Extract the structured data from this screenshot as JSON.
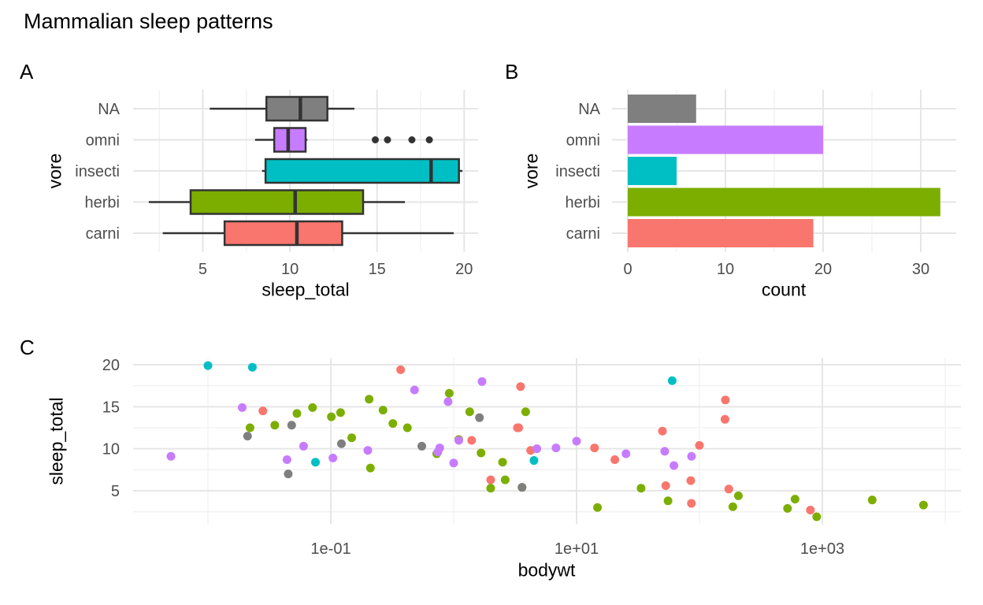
{
  "title": "Mammalian sleep patterns",
  "palette": {
    "carni": "#F8766D",
    "herbi": "#7CAE00",
    "insecti": "#00BFC4",
    "omni": "#C77CFF",
    "NA": "#7F7F7F"
  },
  "style": {
    "background": "#FFFFFF",
    "grid_major": "#E6E6E6",
    "grid_minor": "#F0F0F0",
    "box_line": "#333333",
    "outlier_color": "#333333",
    "tick_label_color": "#4D4D4D",
    "text_color": "#000000"
  },
  "chart_data": [
    {
      "panel": "A",
      "tag": "A",
      "type": "boxplot",
      "orientation": "horizontal",
      "xlabel": "sleep_total",
      "ylabel": "vore",
      "xticks": [
        5,
        10,
        15,
        20
      ],
      "xlim": [
        1.0,
        20.8
      ],
      "categories": [
        "NA",
        "omni",
        "insecti",
        "herbi",
        "carni"
      ],
      "boxes": [
        {
          "vore": "NA",
          "whisker_min": 5.4,
          "q1": 8.65,
          "median": 10.6,
          "q3": 12.15,
          "whisker_max": 13.7,
          "outliers": []
        },
        {
          "vore": "omni",
          "whisker_min": 8.0,
          "q1": 9.1,
          "median": 9.9,
          "q3": 10.9,
          "whisker_max": 11.0,
          "outliers": [
            14.9,
            15.6,
            17.0,
            18.0
          ]
        },
        {
          "vore": "insecti",
          "whisker_min": 8.4,
          "q1": 8.6,
          "median": 18.1,
          "q3": 19.7,
          "whisker_max": 19.9,
          "outliers": []
        },
        {
          "vore": "herbi",
          "whisker_min": 1.9,
          "q1": 4.3,
          "median": 10.3,
          "q3": 14.2,
          "whisker_max": 16.6,
          "outliers": []
        },
        {
          "vore": "carni",
          "whisker_min": 2.7,
          "q1": 6.25,
          "median": 10.4,
          "q3": 13.0,
          "whisker_max": 19.4,
          "outliers": []
        }
      ]
    },
    {
      "panel": "B",
      "tag": "B",
      "type": "bar",
      "orientation": "horizontal",
      "xlabel": "count",
      "ylabel": "vore",
      "xticks": [
        0,
        10,
        20,
        30
      ],
      "xlim": [
        0,
        32
      ],
      "categories": [
        "NA",
        "omni",
        "insecti",
        "herbi",
        "carni"
      ],
      "bars": [
        {
          "vore": "NA",
          "count": 7
        },
        {
          "vore": "omni",
          "count": 20
        },
        {
          "vore": "insecti",
          "count": 5
        },
        {
          "vore": "herbi",
          "count": 32
        },
        {
          "vore": "carni",
          "count": 19
        }
      ]
    },
    {
      "panel": "C",
      "tag": "C",
      "type": "scatter",
      "xlabel": "bodywt",
      "ylabel": "sleep_total",
      "x_scale": "log10",
      "xticks": [
        {
          "label": "1e-01",
          "value": 0.1
        },
        {
          "label": "1e+01",
          "value": 10
        },
        {
          "label": "1e+03",
          "value": 1000
        }
      ],
      "yticks": [
        5,
        10,
        15,
        20
      ],
      "xlim": [
        0.005,
        6654
      ],
      "ylim": [
        1.9,
        19.9
      ],
      "points": [
        [
          50,
          12.1,
          "carni"
        ],
        [
          20.49,
          8.7,
          "carni"
        ],
        [
          14,
          10.1,
          "carni"
        ],
        [
          3.5,
          17.4,
          "carni"
        ],
        [
          3.3,
          12.5,
          "carni"
        ],
        [
          800,
          2.7,
          "carni"
        ],
        [
          85,
          6.2,
          "carni"
        ],
        [
          0.37,
          19.4,
          "carni"
        ],
        [
          1.4,
          11,
          "carni"
        ],
        [
          0.028,
          14.5,
          "carni"
        ],
        [
          173.33,
          5.2,
          "carni"
        ],
        [
          2,
          6.3,
          "carni"
        ],
        [
          3.38,
          12.5,
          "carni"
        ],
        [
          4.23,
          9.8,
          "carni"
        ],
        [
          86,
          3.5,
          "carni"
        ],
        [
          53.18,
          5.6,
          "carni"
        ],
        [
          162.564,
          15.8,
          "carni"
        ],
        [
          161.499,
          13.5,
          "carni"
        ],
        [
          100,
          10.4,
          "carni"
        ],
        [
          1.35,
          14.4,
          "herbi"
        ],
        [
          600,
          4,
          "herbi"
        ],
        [
          3.85,
          14.4,
          "herbi"
        ],
        [
          14.8,
          3,
          "herbi"
        ],
        [
          33.5,
          5.3,
          "herbi"
        ],
        [
          0.728,
          9.4,
          "herbi"
        ],
        [
          0.42,
          12.5,
          "herbi"
        ],
        [
          2,
          5.3,
          "herbi"
        ],
        [
          2547,
          3.9,
          "herbi"
        ],
        [
          521,
          2.9,
          "herbi"
        ],
        [
          187,
          3.1,
          "herbi"
        ],
        [
          0.071,
          14.9,
          "herbi"
        ],
        [
          899.995,
          1.9,
          "herbi"
        ],
        [
          2.625,
          6.3,
          "herbi"
        ],
        [
          1.67,
          9.5,
          "herbi"
        ],
        [
          6654,
          3.3,
          "herbi"
        ],
        [
          0.053,
          14.2,
          "herbi"
        ],
        [
          0.12,
          14.3,
          "herbi"
        ],
        [
          0.035,
          12.8,
          "herbi"
        ],
        [
          0.022,
          12.5,
          "herbi"
        ],
        [
          0.266,
          14.6,
          "herbi"
        ],
        [
          0.21,
          7.7,
          "herbi"
        ],
        [
          2.5,
          8.4,
          "herbi"
        ],
        [
          0.32,
          13,
          "herbi"
        ],
        [
          0.148,
          11.3,
          "herbi"
        ],
        [
          0.92,
          16.6,
          "herbi"
        ],
        [
          0.101,
          13.8,
          "herbi"
        ],
        [
          0.205,
          15.9,
          "herbi"
        ],
        [
          207.5,
          4.4,
          "herbi"
        ],
        [
          1.1,
          11.1,
          "herbi"
        ],
        [
          55.5,
          3.8,
          "herbi"
        ],
        [
          3.6,
          5.4,
          "herbi"
        ],
        [
          0.023,
          19.7,
          "insecti"
        ],
        [
          0.01,
          19.9,
          "insecti"
        ],
        [
          0.075,
          8.4,
          "insecti"
        ],
        [
          4.5,
          8.6,
          "insecti"
        ],
        [
          60,
          18.1,
          "insecti"
        ],
        [
          0.48,
          17,
          "omni"
        ],
        [
          0.019,
          14.9,
          "omni"
        ],
        [
          4.75,
          10,
          "omni"
        ],
        [
          0.06,
          10.3,
          "omni"
        ],
        [
          1,
          8.3,
          "omni"
        ],
        [
          0.005,
          9.1,
          "omni"
        ],
        [
          1.7,
          18,
          "omni"
        ],
        [
          0.77,
          10.1,
          "omni"
        ],
        [
          10,
          10.9,
          "omni"
        ],
        [
          0.2,
          9.8,
          "omni"
        ],
        [
          62,
          8,
          "omni"
        ],
        [
          6.8,
          10.1,
          "omni"
        ],
        [
          0.044,
          8.7,
          "omni"
        ],
        [
          0.743,
          9.6,
          "omni"
        ],
        [
          86.25,
          9.1,
          "omni"
        ],
        [
          0.104,
          8.9,
          "omni"
        ],
        [
          25.235,
          9.4,
          "omni"
        ],
        [
          1.1,
          11,
          "omni"
        ],
        [
          52.2,
          9.7,
          "omni"
        ],
        [
          0.9,
          15.6,
          "omni"
        ],
        [
          0.045,
          7,
          "NA"
        ],
        [
          0.55,
          10.3,
          "NA"
        ],
        [
          0.122,
          10.6,
          "NA"
        ],
        [
          0.048,
          12.8,
          "NA"
        ],
        [
          1.62,
          13.7,
          "NA"
        ],
        [
          0.021,
          11.5,
          "NA"
        ],
        [
          3.6,
          5.4,
          "NA"
        ]
      ]
    }
  ]
}
